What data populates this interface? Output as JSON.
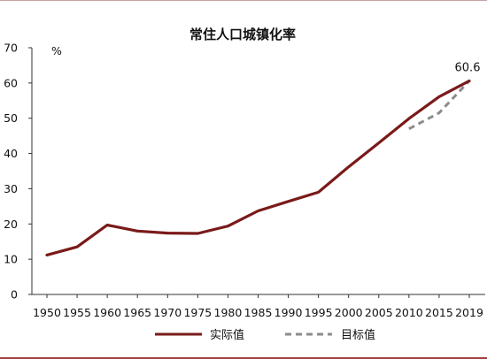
{
  "chart_data": {
    "type": "line",
    "title": "常住人口城镇化率",
    "ylabel": "%",
    "xlabel": "",
    "ylim": [
      0,
      70
    ],
    "yticks": [
      0,
      10,
      20,
      30,
      40,
      50,
      60,
      70
    ],
    "x_ticks": [
      "1950",
      "1955",
      "1960",
      "1965",
      "1970",
      "1975",
      "1980",
      "1985",
      "1990",
      "1995",
      "2000",
      "2005",
      "2010",
      "2015",
      "2019"
    ],
    "grid": false,
    "legend_position": "bottom",
    "series": [
      {
        "name": "实际值",
        "color": "#7a1a1a",
        "style": "solid",
        "points": [
          {
            "x": "1950",
            "y": 11.2
          },
          {
            "x": "1955",
            "y": 13.5
          },
          {
            "x": "1960",
            "y": 19.7
          },
          {
            "x": "1965",
            "y": 18.0
          },
          {
            "x": "1970",
            "y": 17.4
          },
          {
            "x": "1975",
            "y": 17.3
          },
          {
            "x": "1980",
            "y": 19.4
          },
          {
            "x": "1985",
            "y": 23.7
          },
          {
            "x": "1990",
            "y": 26.4
          },
          {
            "x": "1995",
            "y": 29.0
          },
          {
            "x": "2000",
            "y": 36.2
          },
          {
            "x": "2005",
            "y": 43.0
          },
          {
            "x": "2010",
            "y": 49.9
          },
          {
            "x": "2015",
            "y": 56.1
          },
          {
            "x": "2019",
            "y": 60.6
          }
        ]
      },
      {
        "name": "目标值",
        "color": "#8c8c8c",
        "style": "dashed",
        "points": [
          {
            "x": "2010",
            "y": 47.0
          },
          {
            "x": "2015",
            "y": 51.5
          },
          {
            "x": "2019",
            "y": 60.6
          }
        ]
      }
    ],
    "annotations": [
      {
        "text": "60.6",
        "x": "2019",
        "y": 60.6
      }
    ]
  }
}
